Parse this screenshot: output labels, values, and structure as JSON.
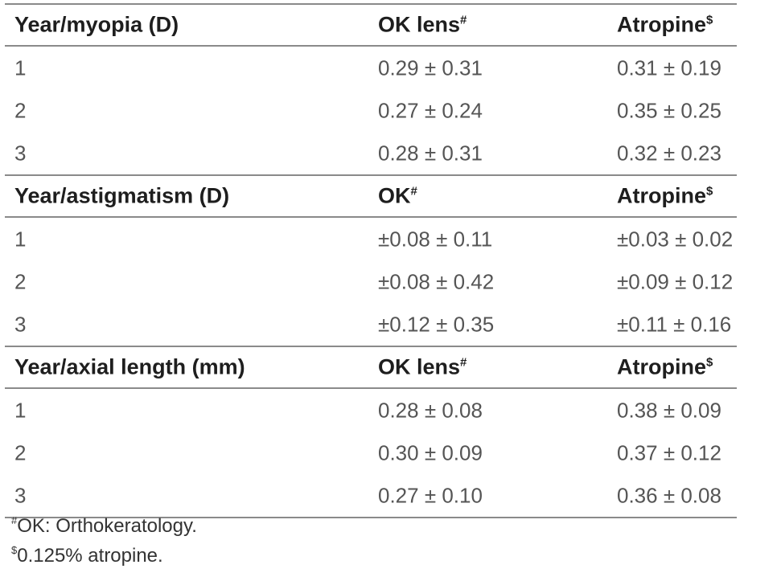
{
  "sections": [
    {
      "header": {
        "label": "Year/myopia (D)",
        "col2": "OK lens",
        "col2_mark": "#",
        "col3": "Atropine",
        "col3_mark": "$"
      },
      "rows": [
        {
          "year": "1",
          "ok": "0.29 ± 0.31",
          "atropine": "0.31 ± 0.19"
        },
        {
          "year": "2",
          "ok": "0.27 ± 0.24",
          "atropine": "0.35 ± 0.25"
        },
        {
          "year": "3",
          "ok": "0.28 ± 0.31",
          "atropine": "0.32 ± 0.23"
        }
      ]
    },
    {
      "header": {
        "label": "Year/astigmatism (D)",
        "col2": "OK",
        "col2_mark": "#",
        "col3": "Atropine",
        "col3_mark": "$"
      },
      "rows": [
        {
          "year": "1",
          "ok": "±0.08 ± 0.11",
          "atropine": "±0.03 ± 0.02"
        },
        {
          "year": "2",
          "ok": "±0.08 ± 0.42",
          "atropine": "±0.09 ± 0.12"
        },
        {
          "year": "3",
          "ok": "±0.12 ± 0.35",
          "atropine": "±0.11 ± 0.16"
        }
      ]
    },
    {
      "header": {
        "label": "Year/axial length (mm)",
        "col2": "OK lens",
        "col2_mark": "#",
        "col3": "Atropine",
        "col3_mark": "$"
      },
      "rows": [
        {
          "year": "1",
          "ok": "0.28 ± 0.08",
          "atropine": "0.38 ± 0.09"
        },
        {
          "year": "2",
          "ok": "0.30 ± 0.09",
          "atropine": "0.37 ± 0.12"
        },
        {
          "year": "3",
          "ok": "0.27 ± 0.10",
          "atropine": "0.36 ± 0.08"
        }
      ]
    }
  ],
  "footnotes": [
    {
      "mark": "#",
      "text": "OK: Orthokeratology."
    },
    {
      "mark": "$",
      "text": "0.125% atropine."
    }
  ]
}
